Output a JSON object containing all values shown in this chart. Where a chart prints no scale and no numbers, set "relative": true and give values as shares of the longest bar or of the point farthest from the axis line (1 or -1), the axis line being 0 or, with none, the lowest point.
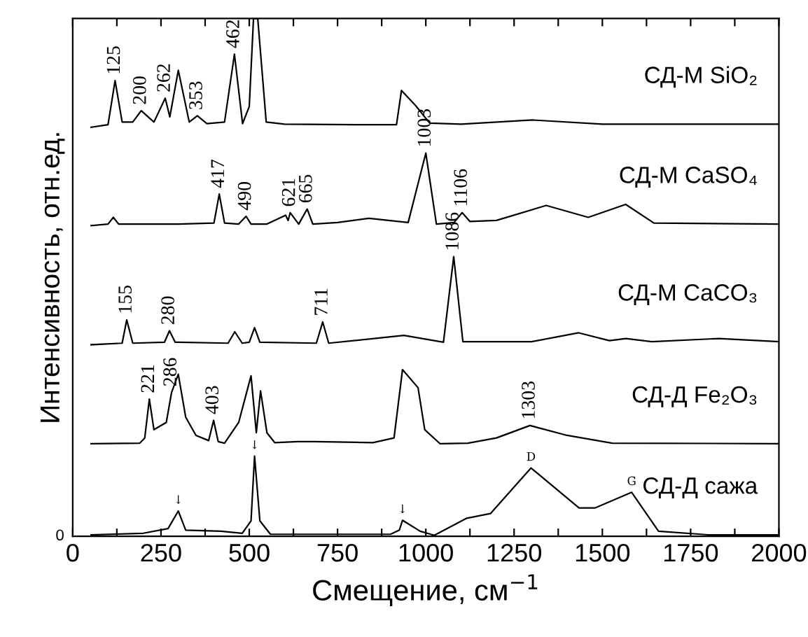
{
  "chart_data": {
    "type": "line",
    "relative": true,
    "xlabel": "Смещение, см$^{−1}$",
    "ylabel": "Интенсивность, отн.ед.",
    "xlim": [
      0,
      2000
    ],
    "xticks": [
      0,
      {
        "value": 125,
        "label": null
      },
      250,
      {
        "value": 375,
        "label": null
      },
      500,
      {
        "value": 625,
        "label": null
      },
      750,
      {
        "value": 875,
        "label": null
      },
      1000,
      {
        "value": 1125,
        "label": null
      },
      1250,
      {
        "value": 1375,
        "label": null
      },
      1500,
      {
        "value": 1625,
        "label": null
      },
      1750,
      {
        "value": 1875,
        "label": null
      },
      2000
    ],
    "legend": false,
    "grid": false,
    "series": [
      {
        "name": "СД-М SiO₂",
        "color": "#000000",
        "x": [
          52,
          100,
          120,
          140,
          170,
          194,
          230,
          262,
          275,
          299,
          330,
          353,
          380,
          430,
          458,
          481,
          500,
          512,
          524,
          548,
          600,
          800,
          917,
          931,
          971,
          1011,
          1100,
          1302,
          1500,
          2000
        ],
        "values": [
          0.79,
          0.795,
          0.88,
          0.8,
          0.8,
          0.822,
          0.8,
          0.846,
          0.81,
          0.9,
          0.8,
          0.812,
          0.797,
          0.8,
          0.931,
          0.797,
          0.83,
          1.0,
          1.0,
          0.8,
          0.796,
          0.795,
          0.795,
          0.861,
          0.832,
          0.798,
          0.796,
          0.804,
          0.796,
          0.796
        ]
      },
      {
        "name": "СД-М CaSO₄",
        "color": "#000000",
        "x": [
          52,
          100,
          115,
          130,
          300,
          400,
          415,
          430,
          470,
          491,
          505,
          550,
          603,
          610,
          616,
          640,
          664,
          680,
          750,
          839,
          950,
          1000,
          1030,
          1080,
          1103,
          1125,
          1200,
          1341,
          1460,
          1566,
          1646,
          2000
        ],
        "values": [
          0.6,
          0.603,
          0.616,
          0.603,
          0.603,
          0.605,
          0.661,
          0.605,
          0.603,
          0.618,
          0.603,
          0.603,
          0.62,
          0.61,
          0.625,
          0.603,
          0.632,
          0.603,
          0.606,
          0.614,
          0.606,
          0.74,
          0.603,
          0.606,
          0.625,
          0.608,
          0.61,
          0.639,
          0.616,
          0.641,
          0.605,
          0.603
        ]
      },
      {
        "name": "СД-М CaCO₃",
        "color": "#000000",
        "x": [
          52,
          140,
          153,
          170,
          260,
          274,
          290,
          440,
          459,
          480,
          500,
          515,
          530,
          690,
          708,
          725,
          938,
          1050,
          1079,
          1105,
          1300,
          1433,
          1520,
          1567,
          1640,
          1830,
          2000
        ],
        "values": [
          0.37,
          0.373,
          0.418,
          0.373,
          0.375,
          0.397,
          0.375,
          0.373,
          0.395,
          0.373,
          0.375,
          0.403,
          0.375,
          0.373,
          0.414,
          0.373,
          0.388,
          0.375,
          0.54,
          0.376,
          0.376,
          0.393,
          0.378,
          0.382,
          0.376,
          0.382,
          0.376
        ]
      },
      {
        "name": "СД-Д Fe₂O₃",
        "color": "#000000",
        "x": [
          52,
          190,
          204,
          217,
          230,
          265,
          280,
          299,
          320,
          349,
          385,
          399,
          412,
          430,
          470,
          505,
          520,
          532,
          550,
          572,
          637,
          683,
          850,
          910,
          934,
          978,
          997,
          1040,
          1119,
          1200,
          1295,
          1400,
          1528,
          2000
        ],
        "values": [
          0.179,
          0.18,
          0.19,
          0.265,
          0.206,
          0.22,
          0.278,
          0.313,
          0.23,
          0.195,
          0.185,
          0.224,
          0.183,
          0.18,
          0.22,
          0.31,
          0.2,
          0.281,
          0.2,
          0.181,
          0.183,
          0.183,
          0.181,
          0.19,
          0.322,
          0.287,
          0.206,
          0.179,
          0.18,
          0.19,
          0.214,
          0.195,
          0.18,
          0.179
        ]
      },
      {
        "name": "СД-Д сажа",
        "color": "#000000",
        "x": [
          52,
          200,
          270,
          299,
          320,
          420,
          480,
          505,
          515,
          530,
          560,
          900,
          925,
          934,
          984,
          1024,
          1116,
          1183,
          1298,
          1434,
          1480,
          1583,
          1659,
          1800,
          2000
        ],
        "values": [
          0.003,
          0.006,
          0.015,
          0.049,
          0.012,
          0.01,
          0.006,
          0.03,
          0.155,
          0.03,
          0.004,
          0.004,
          0.012,
          0.031,
          0.01,
          0.002,
          0.035,
          0.044,
          0.132,
          0.055,
          0.055,
          0.085,
          0.01,
          0.003,
          0.003
        ]
      }
    ],
    "annotations": [
      {
        "text": "125",
        "x": 120,
        "y": 0.88
      },
      {
        "text": "200",
        "x": 194,
        "y": 0.822
      },
      {
        "text": "262",
        "x": 262,
        "y": 0.846
      },
      {
        "text": "353",
        "x": 353,
        "y": 0.812
      },
      {
        "text": "462",
        "x": 458,
        "y": 0.931
      },
      {
        "text": "417",
        "x": 415,
        "y": 0.661
      },
      {
        "text": "490",
        "x": 491,
        "y": 0.618
      },
      {
        "text": "621",
        "x": 616,
        "y": 0.625
      },
      {
        "text": "665",
        "x": 664,
        "y": 0.632
      },
      {
        "text": "1003",
        "x": 1000,
        "y": 0.74
      },
      {
        "text": "1106",
        "x": 1103,
        "y": 0.625
      },
      {
        "text": "155",
        "x": 153,
        "y": 0.418
      },
      {
        "text": "280",
        "x": 274,
        "y": 0.397
      },
      {
        "text": "711",
        "x": 708,
        "y": 0.414
      },
      {
        "text": "1086",
        "x": 1079,
        "y": 0.54
      },
      {
        "text": "221",
        "x": 217,
        "y": 0.265
      },
      {
        "text": "286",
        "x": 280,
        "y": 0.278
      },
      {
        "text": "403",
        "x": 399,
        "y": 0.224
      },
      {
        "text": "1303",
        "x": 1295,
        "y": 0.214
      },
      {
        "text": "↓",
        "x": 299,
        "y": 0.049
      },
      {
        "text": "↓",
        "x": 515,
        "y": 0.155
      },
      {
        "text": "↓",
        "x": 934,
        "y": 0.031
      },
      {
        "text": "D",
        "x": 1298,
        "y": 0.132
      },
      {
        "text": "G",
        "x": 1583,
        "y": 0.085
      },
      "0"
    ]
  }
}
